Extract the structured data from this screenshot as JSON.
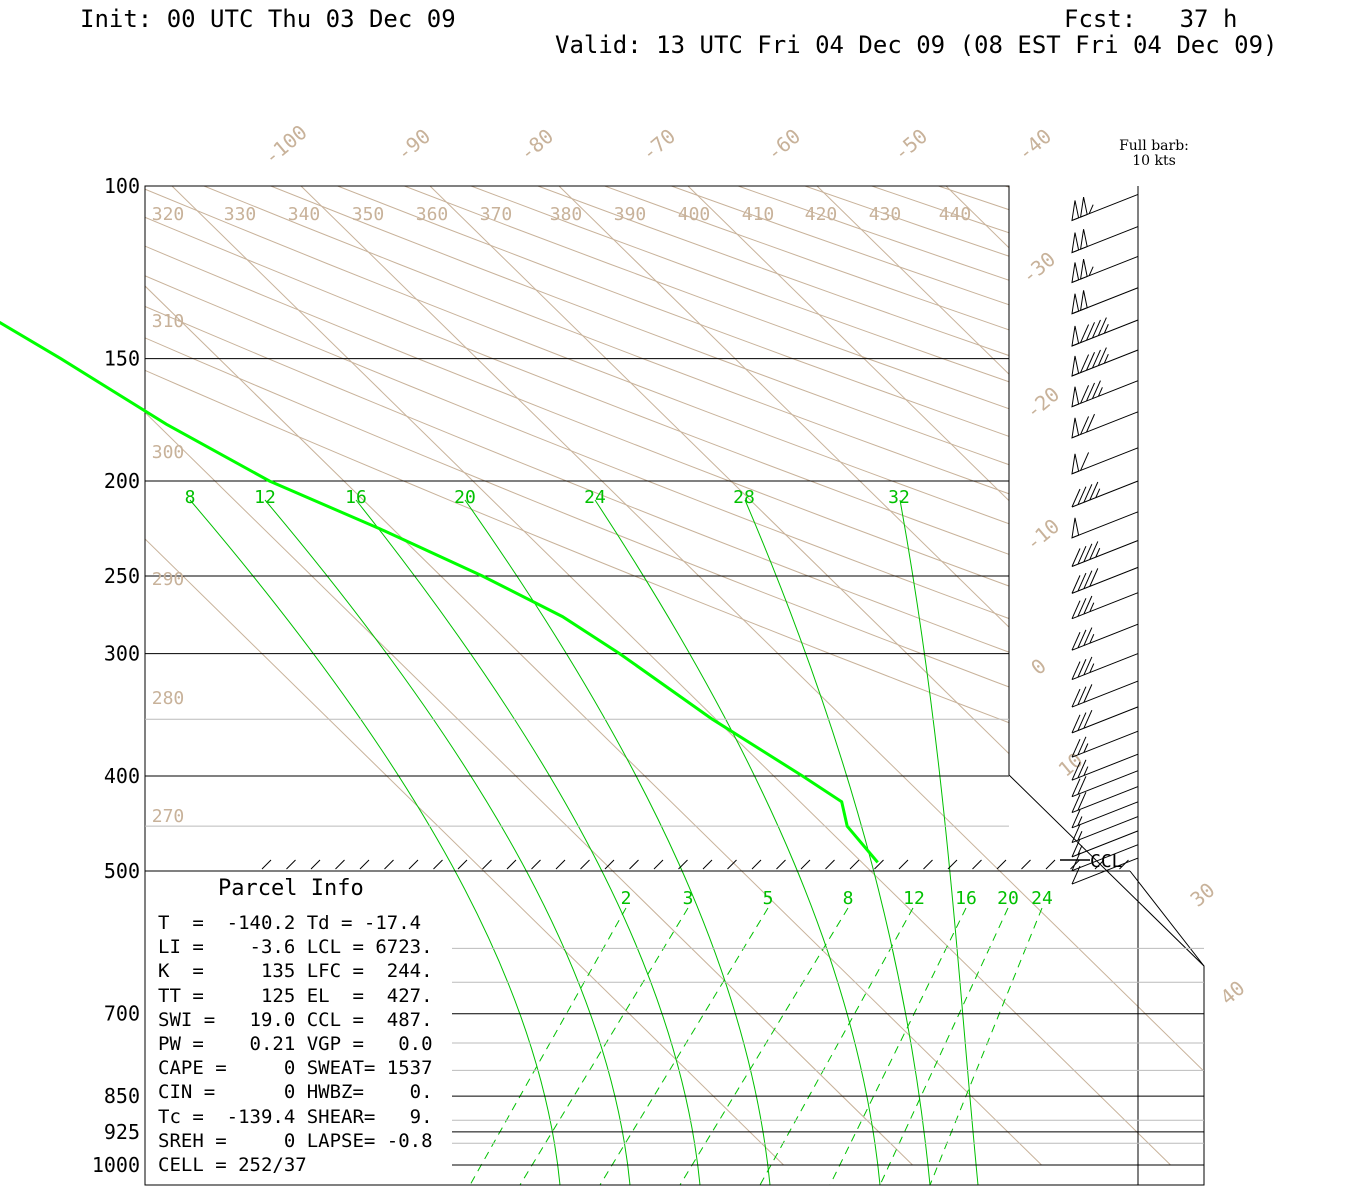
{
  "header": {
    "init": "Init: 00 UTC Thu 03 Dec 09",
    "fcst": "Fcst:   37 h",
    "valid": "Valid: 13 UTC Fri 04 Dec 09 (08 EST Fri 04 Dec 09)"
  },
  "barb_legend": {
    "line1": "Full barb:",
    "line2": "10 kts"
  },
  "parcel_info": {
    "title": "Parcel Info",
    "rows": [
      "T  =  -140.2 Td = -17.4",
      "LI =    -3.6 LCL = 6723.",
      "K  =     135 LFC =  244.",
      "TT =     125 EL  =  427.",
      "SWI =   19.0 CCL =  487.",
      "PW =    0.21 VGP =   0.0",
      "CAPE =     0 SWEAT= 1537",
      "CIN =      0 HWBZ=    0.",
      "Tc =  -139.4 SHEAR=   9.",
      "SREH =     0 LAPSE= -0.8",
      "CELL = 252/37"
    ]
  },
  "chart_data": {
    "type": "line",
    "title": "",
    "y_axis_pressure_levels": [
      "100",
      "150",
      "200",
      "250",
      "300",
      "400",
      "500",
      "700",
      "850",
      "925",
      "1000"
    ],
    "isotherm_labels": [
      "-100",
      "-90",
      "-80",
      "-70",
      "-60",
      "-50",
      "-40",
      "-30",
      "-20",
      "-10",
      "0",
      "10",
      "30",
      "40"
    ],
    "theta_labels": [
      "320",
      "330",
      "340",
      "350",
      "360",
      "370",
      "380",
      "390",
      "400",
      "410",
      "420",
      "430",
      "440",
      "310",
      "300",
      "290",
      "280",
      "270"
    ],
    "moist_adiabat_labels": [
      "8",
      "12",
      "16",
      "20",
      "24",
      "28",
      "32"
    ],
    "mixing_ratio_labels": [
      "2",
      "3",
      "5",
      "8",
      "12",
      "16",
      "20",
      "24"
    ],
    "ccl_label": "CCL",
    "series": [
      {
        "color": "#00ff00",
        "points": [
          {
            "p": 100,
            "t": -41.0
          },
          {
            "p": 110,
            "t": -38.5
          },
          {
            "p": 125,
            "t": -35.5
          },
          {
            "p": 150,
            "t": -31.5
          },
          {
            "p": 175,
            "t": -28.5
          },
          {
            "p": 200,
            "t": -25.0
          },
          {
            "p": 225,
            "t": -20.0
          },
          {
            "p": 250,
            "t": -16.0
          },
          {
            "p": 275,
            "t": -13.0
          },
          {
            "p": 300,
            "t": -11.5
          },
          {
            "p": 350,
            "t": -9.5
          },
          {
            "p": 400,
            "t": -7.0
          },
          {
            "p": 425,
            "t": -6.0
          },
          {
            "p": 450,
            "t": -7.5
          },
          {
            "p": 490,
            "t": -8.0
          }
        ]
      }
    ],
    "wind_barbs": [
      {
        "p": 102,
        "speed": 105
      },
      {
        "p": 110,
        "speed": 100
      },
      {
        "p": 118,
        "speed": 105
      },
      {
        "p": 127,
        "speed": 100
      },
      {
        "p": 137,
        "speed": 95
      },
      {
        "p": 147,
        "speed": 95
      },
      {
        "p": 158,
        "speed": 85
      },
      {
        "p": 170,
        "speed": 70
      },
      {
        "p": 185,
        "speed": 60
      },
      {
        "p": 200,
        "speed": 45
      },
      {
        "p": 215,
        "speed": 50
      },
      {
        "p": 230,
        "speed": 45
      },
      {
        "p": 245,
        "speed": 40
      },
      {
        "p": 260,
        "speed": 35
      },
      {
        "p": 280,
        "speed": 35
      },
      {
        "p": 300,
        "speed": 35
      },
      {
        "p": 320,
        "speed": 30
      },
      {
        "p": 340,
        "speed": 30
      },
      {
        "p": 360,
        "speed": 25
      },
      {
        "p": 380,
        "speed": 25
      },
      {
        "p": 395,
        "speed": 20
      },
      {
        "p": 410,
        "speed": 20
      },
      {
        "p": 425,
        "speed": 15
      },
      {
        "p": 440,
        "speed": 15
      },
      {
        "p": 455,
        "speed": 15
      },
      {
        "p": 470,
        "speed": 10
      },
      {
        "p": 485,
        "speed": 10
      }
    ],
    "colors": {
      "isopleth": "#c8b29a",
      "adiabat": "#00c000",
      "temperature": "#00ff00",
      "grid": "#000000",
      "minor_grid": "#bbbbbb"
    }
  }
}
